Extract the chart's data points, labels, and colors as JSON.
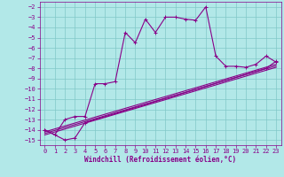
{
  "xlabel": "Windchill (Refroidissement éolien,°C)",
  "bg_color": "#b2e8e8",
  "grid_color": "#80c8c8",
  "line_color": "#880088",
  "xlim": [
    -0.5,
    23.5
  ],
  "ylim": [
    -15.5,
    -1.5
  ],
  "yticks": [
    -2,
    -3,
    -4,
    -5,
    -6,
    -7,
    -8,
    -9,
    -10,
    -11,
    -12,
    -13,
    -14,
    -15
  ],
  "xticks": [
    0,
    1,
    2,
    3,
    4,
    5,
    6,
    7,
    8,
    9,
    10,
    11,
    12,
    13,
    14,
    15,
    16,
    17,
    18,
    19,
    20,
    21,
    22,
    23
  ],
  "line1_x": [
    0,
    1,
    2,
    3,
    4,
    5,
    6,
    7,
    8,
    9,
    10,
    11,
    12,
    13,
    14,
    15,
    16,
    17,
    18,
    19,
    20,
    21,
    22,
    23
  ],
  "line1_y": [
    -14.0,
    -14.5,
    -13.0,
    -12.7,
    -12.7,
    -9.5,
    -9.5,
    -9.3,
    -4.5,
    -5.5,
    -3.2,
    -4.5,
    -3.0,
    -3.0,
    -3.2,
    -3.3,
    -2.0,
    -6.8,
    -7.8,
    -7.8,
    -7.9,
    -7.6,
    -6.8,
    -7.4
  ],
  "line2_x": [
    0,
    2,
    3,
    4,
    22,
    23
  ],
  "line2_y": [
    -14.0,
    -15.0,
    -14.8,
    -13.3,
    -8.0,
    -7.3
  ],
  "line3_x": [
    0,
    23
  ],
  "line3_y": [
    -14.2,
    -7.6
  ],
  "line4_x": [
    0,
    23
  ],
  "line4_y": [
    -14.35,
    -7.75
  ],
  "line5_x": [
    0,
    23
  ],
  "line5_y": [
    -14.5,
    -7.9
  ],
  "xlabel_fontsize": 5.5,
  "tick_fontsize": 5,
  "linewidth": 0.8,
  "markersize": 2.5
}
